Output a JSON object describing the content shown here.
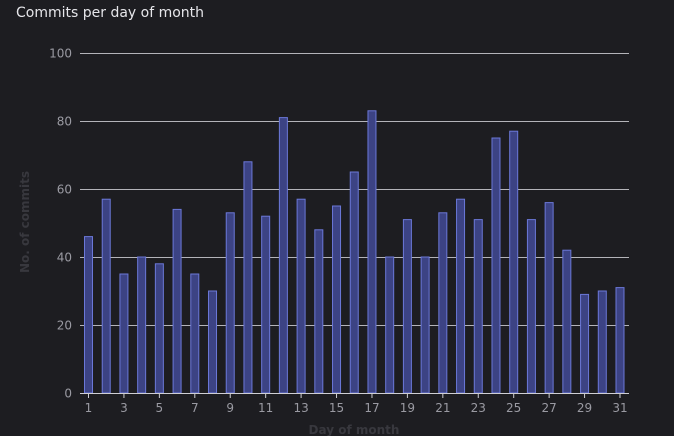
{
  "chart_data": {
    "type": "bar",
    "title": "Commits per day of month",
    "xlabel": "Day of month",
    "ylabel": "No. of commits",
    "ylim": [
      0,
      100
    ],
    "yticks": [
      0,
      20,
      40,
      60,
      80,
      100
    ],
    "xtick_labels": [
      "1",
      "3",
      "5",
      "7",
      "9",
      "11",
      "13",
      "15",
      "17",
      "19",
      "21",
      "23",
      "25",
      "27",
      "29",
      "31"
    ],
    "categories": [
      1,
      2,
      3,
      4,
      5,
      6,
      7,
      8,
      9,
      10,
      11,
      12,
      13,
      14,
      15,
      16,
      17,
      18,
      19,
      20,
      21,
      22,
      23,
      24,
      25,
      26,
      27,
      28,
      29,
      30,
      31
    ],
    "values": [
      46,
      57,
      35,
      40,
      38,
      54,
      35,
      30,
      53,
      68,
      52,
      81,
      57,
      48,
      55,
      65,
      83,
      40,
      51,
      40,
      53,
      57,
      51,
      75,
      77,
      51,
      56,
      42,
      29,
      30,
      31
    ],
    "grid": true,
    "colors": {
      "bar_fill": "#3c4384",
      "bar_stroke": "#6b78d8",
      "grid": "#cfcfd4",
      "background": "#1d1d21"
    }
  }
}
